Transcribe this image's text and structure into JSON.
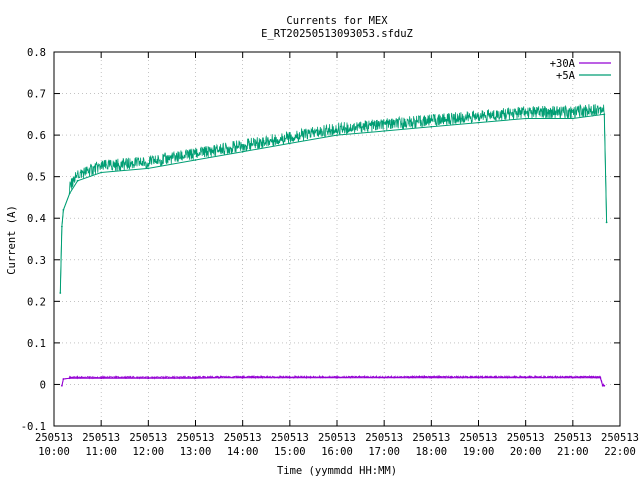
{
  "chart_data": {
    "type": "line",
    "title": "Currents for MEX",
    "subtitle": "E_RT20250513093053.sfduZ",
    "xlabel": "Time (yymmdd HH:MM)",
    "ylabel": "Current (A)",
    "xlim": [
      "250513 10:00",
      "250513 22:00"
    ],
    "ylim": [
      -0.1,
      0.8
    ],
    "grid": true,
    "legend_position": "top-right",
    "x_ticks": [
      {
        "date": "250513",
        "time": "10:00"
      },
      {
        "date": "250513",
        "time": "11:00"
      },
      {
        "date": "250513",
        "time": "12:00"
      },
      {
        "date": "250513",
        "time": "13:00"
      },
      {
        "date": "250513",
        "time": "14:00"
      },
      {
        "date": "250513",
        "time": "15:00"
      },
      {
        "date": "250513",
        "time": "16:00"
      },
      {
        "date": "250513",
        "time": "17:00"
      },
      {
        "date": "250513",
        "time": "18:00"
      },
      {
        "date": "250513",
        "time": "19:00"
      },
      {
        "date": "250513",
        "time": "20:00"
      },
      {
        "date": "250513",
        "time": "21:00"
      },
      {
        "date": "250513",
        "time": "22:00"
      }
    ],
    "y_ticks": [
      "-0.1",
      "0",
      "0.1",
      "0.2",
      "0.3",
      "0.4",
      "0.5",
      "0.6",
      "0.7",
      "0.8"
    ],
    "series": [
      {
        "name": "+30A",
        "color": "#9400d3",
        "x": [
          "250513 10:10",
          "250513 10:12",
          "250513 10:20",
          "250513 11:00",
          "250513 12:00",
          "250513 13:00",
          "250513 13:30",
          "250513 14:00",
          "250513 15:00",
          "250513 16:00",
          "250513 17:00",
          "250513 18:00",
          "250513 19:00",
          "250513 20:00",
          "250513 21:00",
          "250513 21:35",
          "250513 21:38",
          "250513 21:40"
        ],
        "values": [
          -0.003,
          0.013,
          0.015,
          0.015,
          0.015,
          0.015,
          0.016,
          0.016,
          0.016,
          0.016,
          0.016,
          0.016,
          0.016,
          0.016,
          0.016,
          0.016,
          -0.003,
          -0.003
        ]
      },
      {
        "name": "+5A",
        "color": "#009e73",
        "x": [
          "250513 10:08",
          "250513 10:10",
          "250513 10:12",
          "250513 10:20",
          "250513 10:30",
          "250513 11:00",
          "250513 12:00",
          "250513 13:00",
          "250513 14:00",
          "250513 15:00",
          "250513 16:00",
          "250513 17:00",
          "250513 18:00",
          "250513 19:00",
          "250513 20:00",
          "250513 21:00",
          "250513 21:40",
          "250513 21:43"
        ],
        "values": [
          0.22,
          0.38,
          0.42,
          0.46,
          0.49,
          0.51,
          0.52,
          0.54,
          0.56,
          0.58,
          0.6,
          0.61,
          0.62,
          0.63,
          0.64,
          0.64,
          0.65,
          0.39
        ]
      }
    ]
  }
}
